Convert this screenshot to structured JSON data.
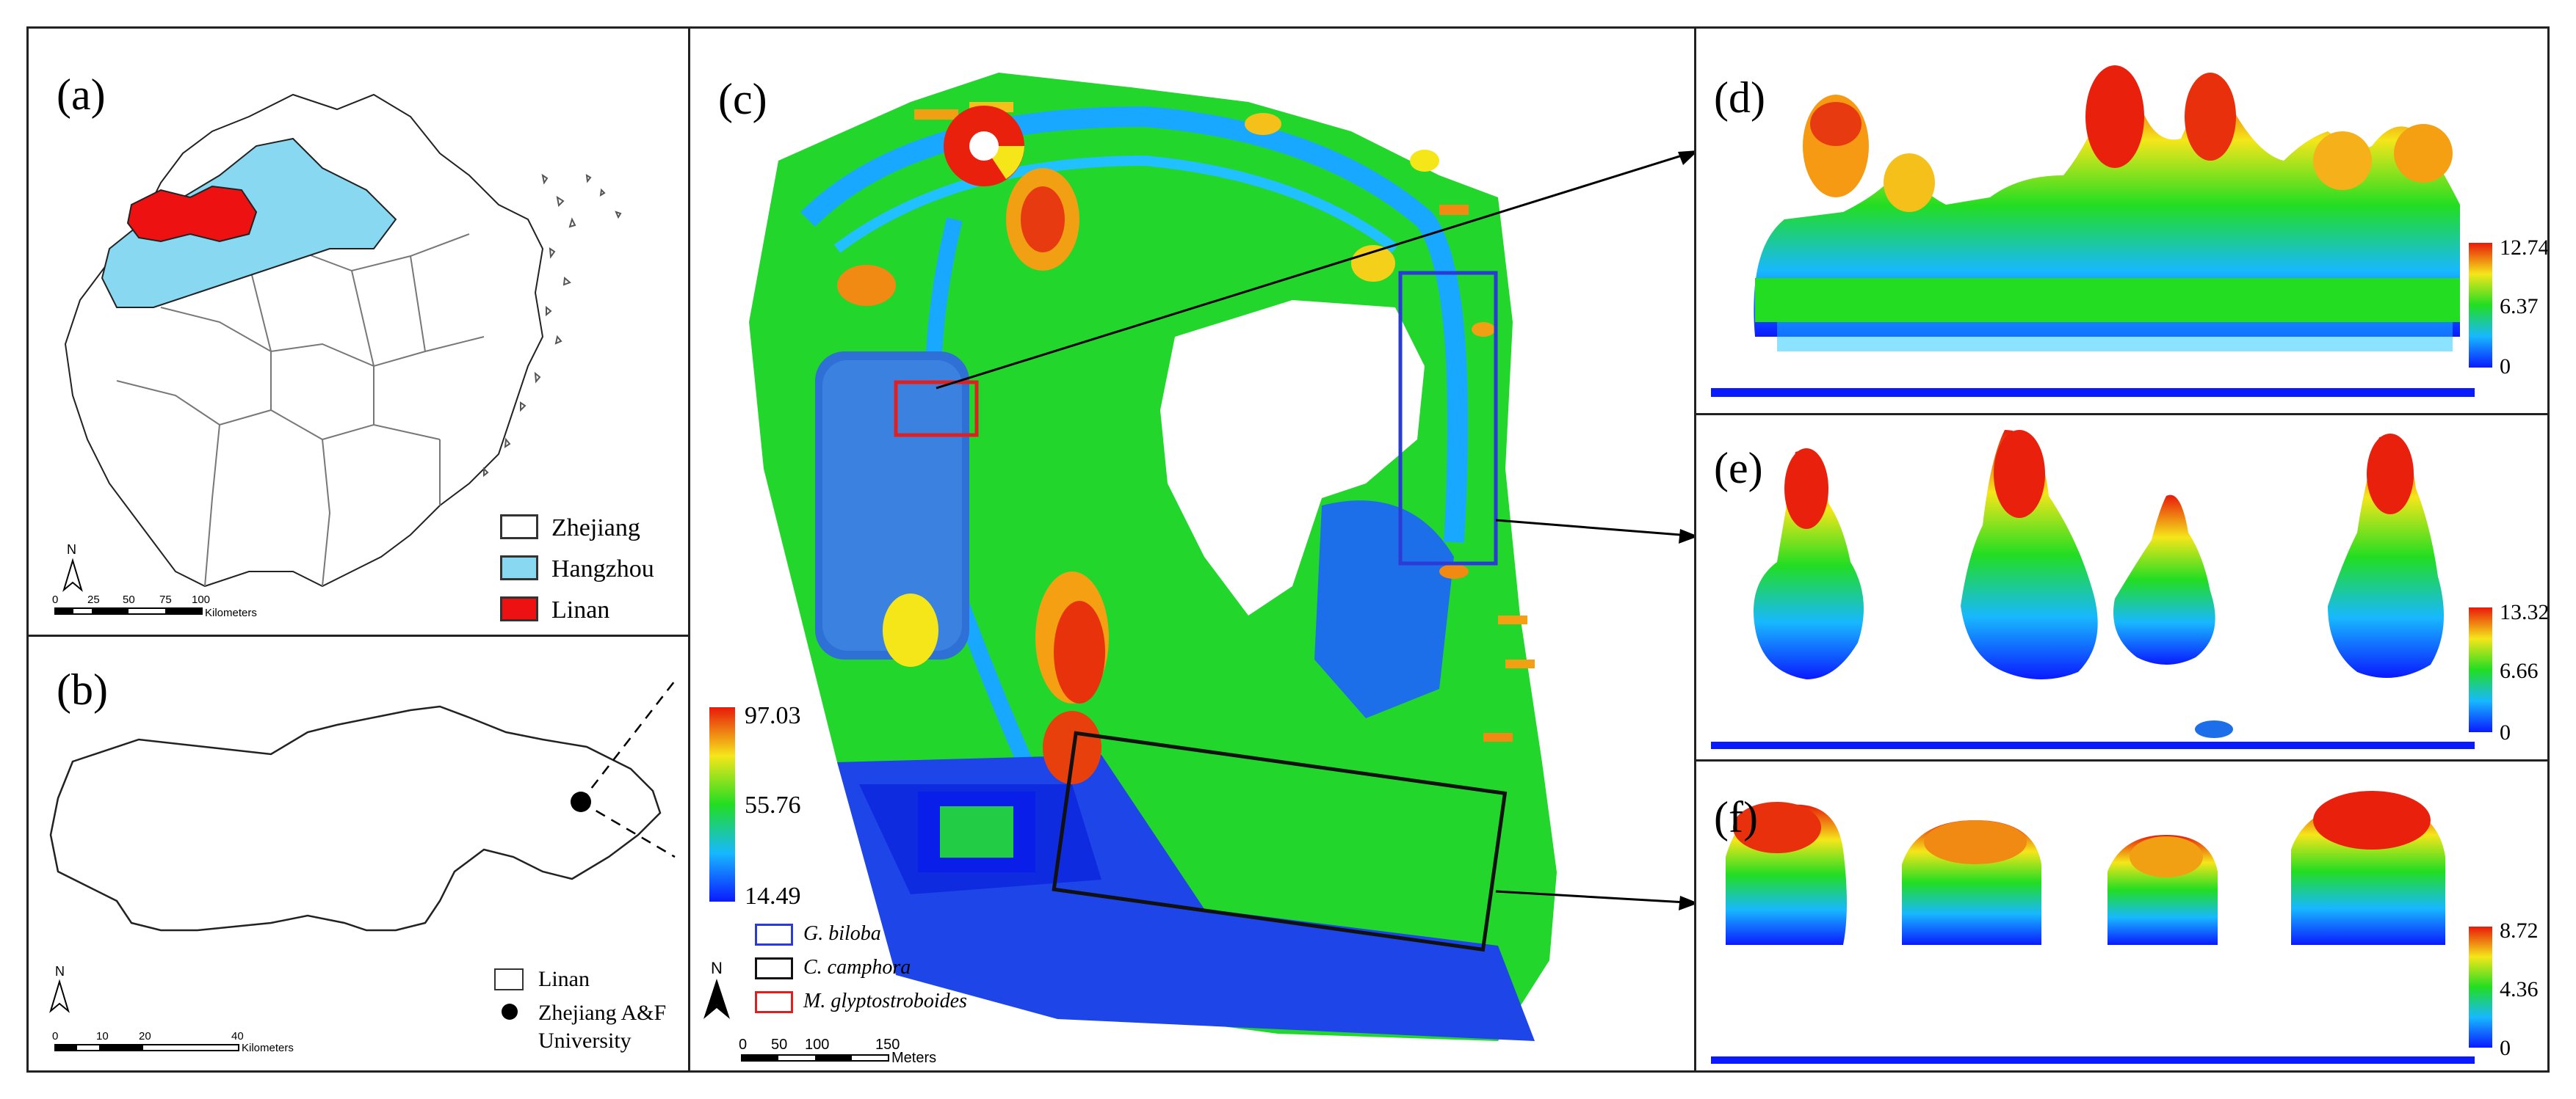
{
  "panels": {
    "a": {
      "label": "(a)",
      "legend": [
        {
          "name": "Zhejiang",
          "color": "#ffffff"
        },
        {
          "name": "Hangzhou",
          "color": "#87d8f0"
        },
        {
          "name": "Linan",
          "color": "#ee1111"
        }
      ],
      "scale_ticks": [
        "0",
        "25",
        "50",
        "75",
        "100"
      ],
      "scale_unit": "Kilometers",
      "north": "N"
    },
    "b": {
      "label": "(b)",
      "legend": [
        {
          "name": "Linan",
          "symbol": "box"
        },
        {
          "name": "Zhejiang A&F",
          "name2": "University",
          "symbol": "dot"
        }
      ],
      "scale_ticks": [
        "0",
        "10",
        "20",
        "40"
      ],
      "scale_unit": "Kilometers",
      "north": "N"
    },
    "c": {
      "label": "(c)",
      "colorbar": {
        "max": "97.03",
        "mid": "55.76",
        "min": "14.49"
      },
      "legend": [
        {
          "name": "G. biloba",
          "color": "#2b3bd6"
        },
        {
          "name": "C. camphora",
          "color": "#111111"
        },
        {
          "name": "M. glyptostroboides",
          "color": "#e02020"
        }
      ],
      "scale_ticks": [
        "0",
        "50",
        "100",
        "150"
      ],
      "scale_unit": "Meters",
      "north": "N"
    },
    "d": {
      "label": "(d)",
      "colorbar": {
        "max": "12.74",
        "mid": "6.37",
        "min": "0"
      }
    },
    "e": {
      "label": "(e)",
      "colorbar": {
        "max": "13.32",
        "mid": "6.66",
        "min": "0"
      }
    },
    "f": {
      "label": "(f)",
      "colorbar": {
        "max": "8.72",
        "mid": "4.36",
        "min": "0"
      }
    }
  },
  "colors": {
    "jet_low": "#0a1aff",
    "jet_mid": "#22dd22",
    "jet_high": "#e81a0a"
  }
}
